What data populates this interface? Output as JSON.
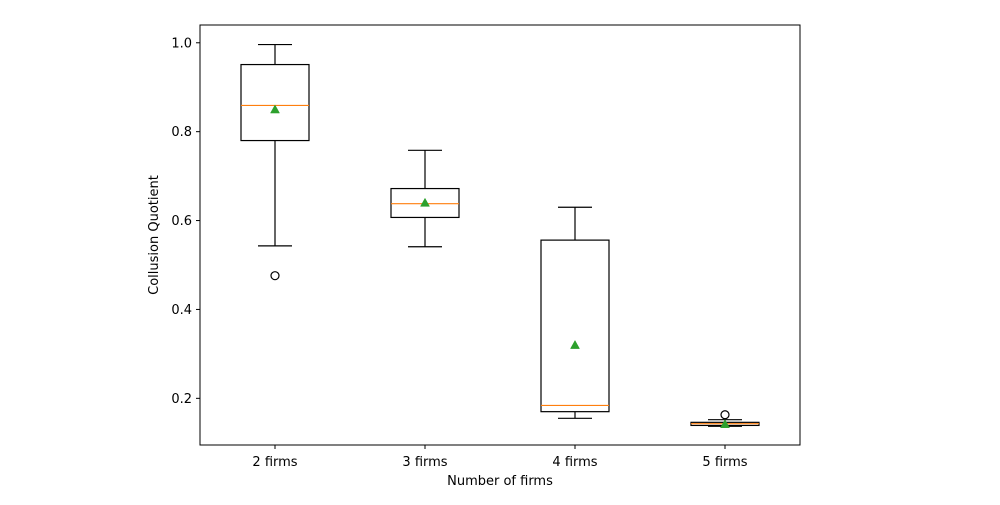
{
  "chart_data": {
    "type": "box",
    "xlabel": "Number of firms",
    "ylabel": "Collusion Quotient",
    "ylim": [
      0.095,
      1.04
    ],
    "yticks": [
      0.2,
      0.4,
      0.6,
      0.8,
      1.0
    ],
    "ytick_labels": [
      "0.2",
      "0.4",
      "0.6",
      "0.8",
      "1.0"
    ],
    "grid": false,
    "colors": {
      "box": "#000000",
      "median": "#ff7f0e",
      "mean": "#2ca02c",
      "outlier": "#000000"
    },
    "categories": [
      "2 firms",
      "3 firms",
      "4 firms",
      "5 firms"
    ],
    "boxes": [
      {
        "whisker_low": 0.543,
        "q1": 0.78,
        "median": 0.859,
        "q3": 0.951,
        "whisker_high": 0.996,
        "mean": 0.85,
        "outliers": [
          0.476
        ]
      },
      {
        "whisker_low": 0.541,
        "q1": 0.607,
        "median": 0.638,
        "q3": 0.672,
        "whisker_high": 0.758,
        "mean": 0.64,
        "outliers": []
      },
      {
        "whisker_low": 0.155,
        "q1": 0.17,
        "median": 0.184,
        "q3": 0.556,
        "whisker_high": 0.63,
        "mean": 0.32,
        "outliers": []
      },
      {
        "whisker_low": 0.137,
        "q1": 0.139,
        "median": 0.143,
        "q3": 0.146,
        "whisker_high": 0.152,
        "mean": 0.142,
        "outliers": [
          0.163
        ]
      }
    ]
  }
}
